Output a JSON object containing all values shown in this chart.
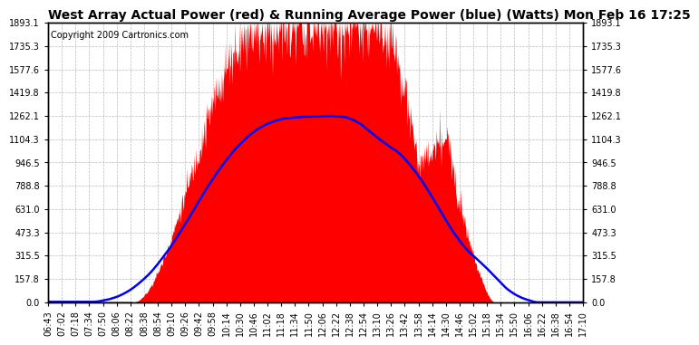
{
  "title": "West Array Actual Power (red) & Running Average Power (blue) (Watts) Mon Feb 16 17:25",
  "copyright": "Copyright 2009 Cartronics.com",
  "yticks": [
    0.0,
    157.8,
    315.5,
    473.3,
    631.0,
    788.8,
    946.5,
    1104.3,
    1262.1,
    1419.8,
    1577.6,
    1735.3,
    1893.1
  ],
  "xtick_labels": [
    "06:43",
    "07:02",
    "07:18",
    "07:34",
    "07:50",
    "08:06",
    "08:22",
    "08:38",
    "08:54",
    "09:10",
    "09:26",
    "09:42",
    "09:58",
    "10:14",
    "10:30",
    "10:46",
    "11:02",
    "11:18",
    "11:34",
    "11:50",
    "12:06",
    "12:22",
    "12:38",
    "12:54",
    "13:10",
    "13:26",
    "13:42",
    "13:58",
    "14:14",
    "14:30",
    "14:46",
    "15:02",
    "15:18",
    "15:34",
    "15:50",
    "16:06",
    "16:22",
    "16:38",
    "16:54",
    "17:10"
  ],
  "bg_color": "#ffffff",
  "red_color": "#ff0000",
  "blue_color": "#0000ff",
  "title_fontsize": 10,
  "copyright_fontsize": 7,
  "axis_fontsize": 7,
  "ymax": 1893.1,
  "ymin": 0.0
}
